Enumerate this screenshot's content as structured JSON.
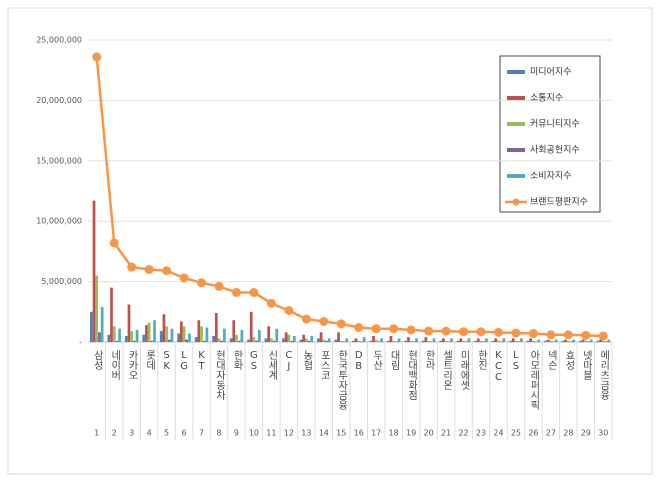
{
  "chart_data": {
    "type": "bar",
    "categories": [
      "삼성",
      "네이버",
      "카카오",
      "롯데",
      "SK",
      "LG",
      "KT",
      "현대자동차",
      "한화",
      "GS",
      "신세계",
      "CJ",
      "농협",
      "포스코",
      "한국투자금융",
      "DB",
      "두산",
      "대림",
      "현대백화점",
      "한라",
      "셀트리온",
      "미래에셋",
      "한진",
      "KCC",
      "LS",
      "아모레퍼시픽",
      "넥슨",
      "효성",
      "넷마블",
      "메리츠금융"
    ],
    "ranks": [
      1,
      2,
      3,
      4,
      5,
      6,
      7,
      8,
      9,
      10,
      11,
      12,
      13,
      14,
      15,
      16,
      17,
      18,
      19,
      20,
      21,
      22,
      23,
      24,
      25,
      26,
      27,
      28,
      29,
      30
    ],
    "series": [
      {
        "name": "미디어지수",
        "type": "bar",
        "color": "#4f81bd",
        "values": [
          2500000,
          600000,
          500000,
          600000,
          900000,
          700000,
          400000,
          500000,
          300000,
          200000,
          300000,
          300000,
          200000,
          300000,
          200000,
          100000,
          100000,
          100000,
          100000,
          100000,
          100000,
          100000,
          100000,
          100000,
          100000,
          100000,
          100000,
          100000,
          100000,
          100000
        ]
      },
      {
        "name": "소통지수",
        "type": "bar",
        "color": "#c0504d",
        "values": [
          11700000,
          4500000,
          3100000,
          1400000,
          2300000,
          1700000,
          1800000,
          2400000,
          1800000,
          2500000,
          1300000,
          800000,
          600000,
          800000,
          800000,
          300000,
          500000,
          500000,
          400000,
          400000,
          300000,
          300000,
          300000,
          300000,
          300000,
          300000,
          200000,
          200000,
          200000,
          200000
        ]
      },
      {
        "name": "커뮤니티지수",
        "type": "bar",
        "color": "#9bbb59",
        "values": [
          5500000,
          1300000,
          900000,
          1600000,
          1300000,
          1300000,
          1300000,
          300000,
          600000,
          400000,
          300000,
          600000,
          300000,
          200000,
          100000,
          100000,
          200000,
          100000,
          100000,
          100000,
          100000,
          100000,
          100000,
          100000,
          100000,
          100000,
          100000,
          100000,
          100000,
          100000
        ]
      },
      {
        "name": "사회공헌지수",
        "type": "bar",
        "color": "#8064a2",
        "values": [
          800000,
          100000,
          100000,
          100000,
          200000,
          200000,
          100000,
          100000,
          100000,
          100000,
          100000,
          100000,
          100000,
          100000,
          50000,
          50000,
          50000,
          50000,
          50000,
          50000,
          50000,
          50000,
          50000,
          50000,
          50000,
          50000,
          50000,
          50000,
          50000,
          50000
        ]
      },
      {
        "name": "소비자지수",
        "type": "bar",
        "color": "#4bacc6",
        "values": [
          2900000,
          1100000,
          1000000,
          1800000,
          1100000,
          700000,
          1200000,
          1100000,
          1000000,
          1000000,
          1100000,
          500000,
          500000,
          300000,
          300000,
          400000,
          300000,
          300000,
          300000,
          300000,
          300000,
          300000,
          300000,
          300000,
          300000,
          200000,
          200000,
          200000,
          200000,
          200000
        ]
      },
      {
        "name": "브랜드평판지수",
        "type": "line",
        "color": "#f79646",
        "values": [
          23600000,
          8200000,
          6200000,
          6000000,
          5900000,
          5300000,
          4900000,
          4600000,
          4100000,
          4100000,
          3200000,
          2600000,
          1900000,
          1700000,
          1500000,
          1200000,
          1100000,
          1100000,
          1000000,
          900000,
          900000,
          850000,
          850000,
          800000,
          750000,
          700000,
          600000,
          600000,
          550000,
          500000
        ]
      }
    ],
    "ylim": [
      0,
      25000000
    ],
    "yticks": [
      {
        "value": 0,
        "label": "-"
      },
      {
        "value": 5000000,
        "label": "5,000,000"
      },
      {
        "value": 10000000,
        "label": "10,000,000"
      },
      {
        "value": 15000000,
        "label": "15,000,000"
      },
      {
        "value": 20000000,
        "label": "20,000,000"
      },
      {
        "value": 25000000,
        "label": "25,000,000"
      }
    ],
    "grid": true
  }
}
